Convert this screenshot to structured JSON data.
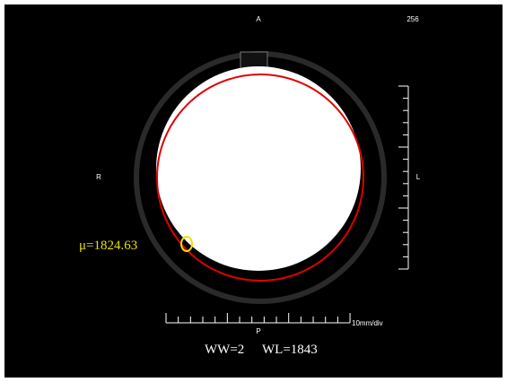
{
  "view": {
    "orientation_top": "A",
    "orientation_bottom": "P",
    "orientation_left": "R",
    "orientation_right": "L",
    "slice_info": "256",
    "scale_label": "10mm/div",
    "roi_label": "μ=1824.63",
    "window_width": "WW=2",
    "window_level": "WL=1843"
  }
}
